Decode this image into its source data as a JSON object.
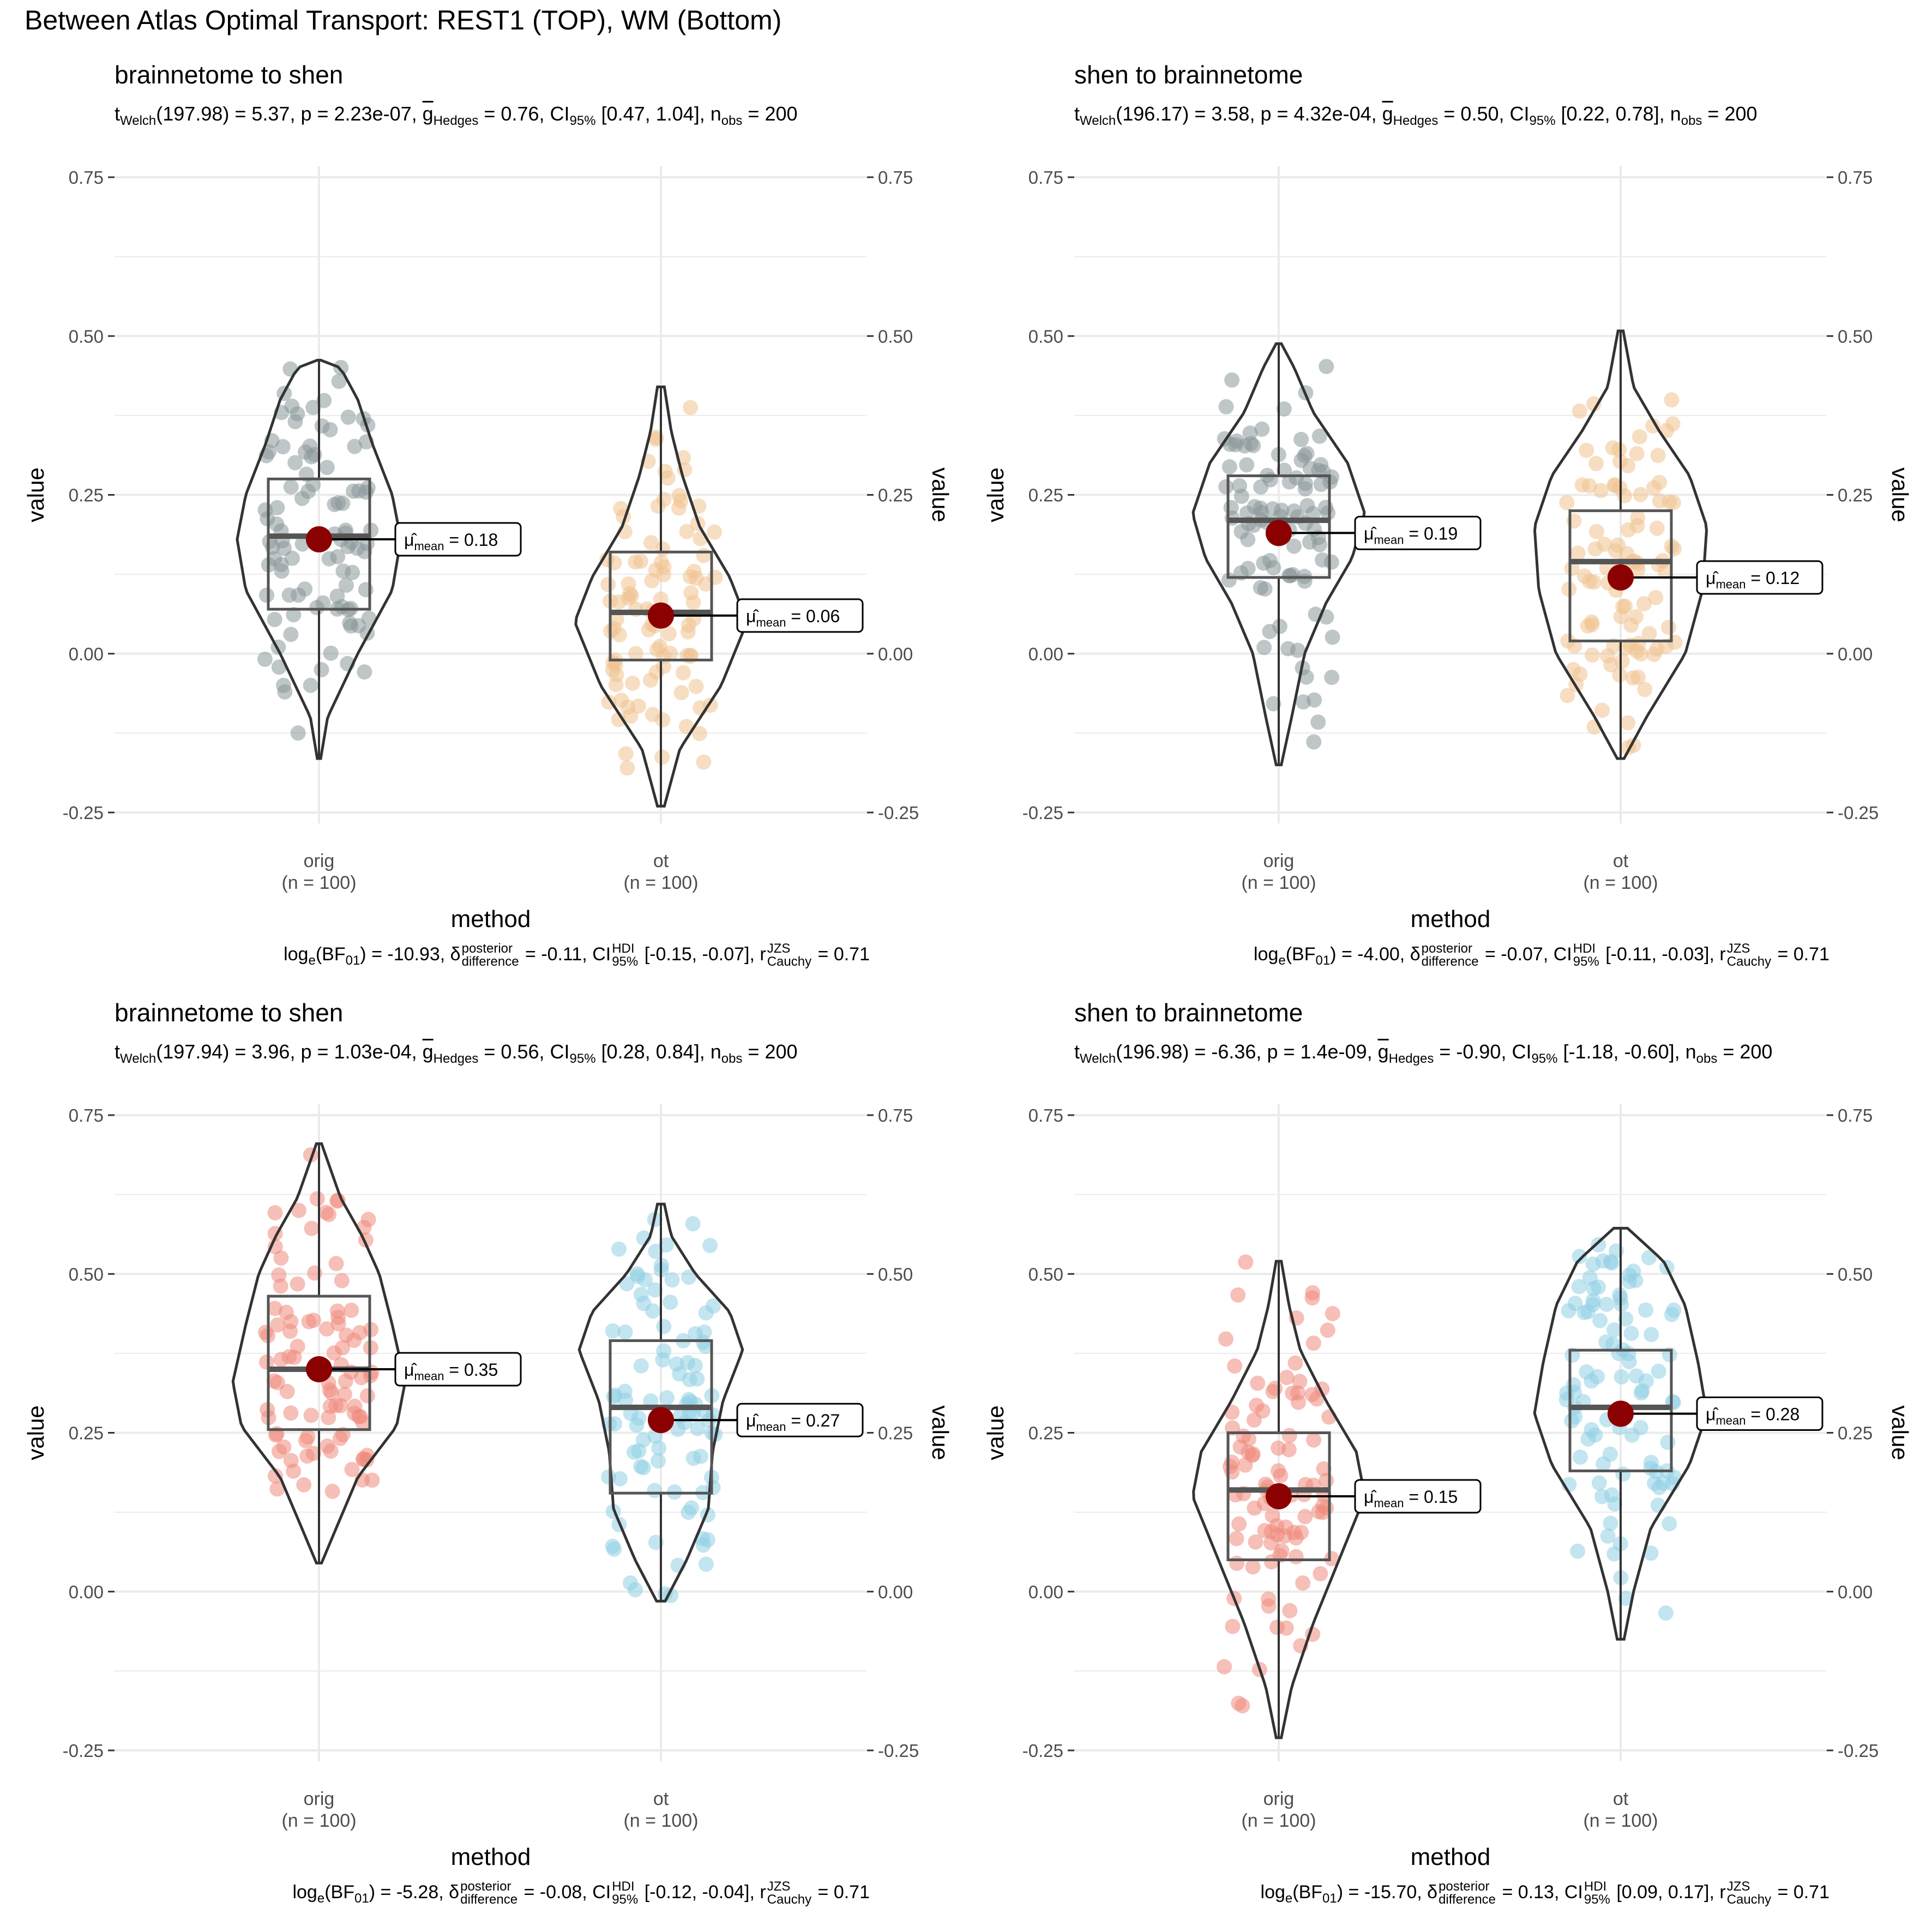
{
  "title": "Between Atlas Optimal Transport:  REST1  (TOP),  WM  (Bottom)",
  "colors": {
    "orig_top": "#8a9899",
    "ot_top": "#f0c28f",
    "orig_bottom": "#ef8a7b",
    "ot_bottom": "#8fd0e3",
    "mean_dot": "#8b0000",
    "outline": "#333333",
    "grid": "#ebebeb"
  },
  "chart_data": [
    {
      "type": "violin",
      "title": "brainnetome to shen",
      "subtitle": {
        "stat": "t",
        "stat_sub": "Welch",
        "df_value": "(197.98) = 5.37, p = 2.23e-07, ",
        "g_letter": "g",
        "g_sub": "Hedges",
        "g_value": " = 0.76, CI",
        "ci_sub": "95%",
        "ci_value": " [0.47, 1.04], n",
        "n_sub": "obs",
        "n_value": " = 200"
      },
      "caption": {
        "log_text": "log",
        "log_sub": "e",
        "bf_text": "(BF",
        "bf_sub": "01",
        "bf_value": ") = -10.93, ",
        "delta_sup": "posterior",
        "delta_sub": "difference",
        "delta_value": " = -0.11, CI",
        "hdi_sup": "HDI",
        "hdi_sub": "95%",
        "hdi_value": " [-0.15, -0.07], r",
        "r_sup": "JZS",
        "r_sub": "Cauchy",
        "r_value": " = 0.71"
      },
      "xlabel": "method",
      "ylabel": "value",
      "ylim": [
        -0.25,
        0.75
      ],
      "yticks": [
        "-0.25",
        "0.00",
        "0.25",
        "0.50",
        "0.75"
      ],
      "categories": [
        "orig",
        "ot"
      ],
      "category_n": [
        "(n = 100)",
        "(n = 100)"
      ],
      "palette": [
        "orig_top",
        "ot_top"
      ],
      "groups": [
        {
          "name": "orig",
          "min": -0.165,
          "q1": 0.07,
          "median": 0.185,
          "q3": 0.275,
          "max": 0.462,
          "mean": 0.18,
          "mean_label": "= 0.18",
          "mean_label_sub": "mean",
          "density": [
            [
              -0.165,
              0.02
            ],
            [
              -0.1,
              0.1
            ],
            [
              0.0,
              0.45
            ],
            [
              0.1,
              0.85
            ],
            [
              0.18,
              0.95
            ],
            [
              0.25,
              0.85
            ],
            [
              0.33,
              0.62
            ],
            [
              0.4,
              0.45
            ],
            [
              0.45,
              0.25
            ],
            [
              0.462,
              0.02
            ]
          ]
        },
        {
          "name": "ot",
          "min": -0.24,
          "q1": -0.01,
          "median": 0.065,
          "q3": 0.16,
          "max": 0.42,
          "mean": 0.06,
          "mean_label": "= 0.06",
          "mean_label_sub": "mean",
          "density": [
            [
              -0.24,
              0.04
            ],
            [
              -0.15,
              0.22
            ],
            [
              -0.05,
              0.7
            ],
            [
              0.05,
              1.0
            ],
            [
              0.12,
              0.8
            ],
            [
              0.2,
              0.45
            ],
            [
              0.28,
              0.25
            ],
            [
              0.35,
              0.12
            ],
            [
              0.42,
              0.04
            ]
          ]
        }
      ]
    },
    {
      "type": "violin",
      "title": "shen to brainnetome",
      "subtitle": {
        "stat": "t",
        "stat_sub": "Welch",
        "df_value": "(196.17) = 3.58, p = 4.32e-04, ",
        "g_letter": "g",
        "g_sub": "Hedges",
        "g_value": " = 0.50, CI",
        "ci_sub": "95%",
        "ci_value": " [0.22, 0.78], n",
        "n_sub": "obs",
        "n_value": " = 200"
      },
      "caption": {
        "log_text": "log",
        "log_sub": "e",
        "bf_text": "(BF",
        "bf_sub": "01",
        "bf_value": ") = -4.00, ",
        "delta_sup": "posterior",
        "delta_sub": "difference",
        "delta_value": " = -0.07, CI",
        "hdi_sup": "HDI",
        "hdi_sub": "95%",
        "hdi_value": " [-0.11, -0.03], r",
        "r_sup": "JZS",
        "r_sub": "Cauchy",
        "r_value": " = 0.71"
      },
      "xlabel": "method",
      "ylabel": "value",
      "ylim": [
        -0.25,
        0.75
      ],
      "yticks": [
        "-0.25",
        "0.00",
        "0.25",
        "0.50",
        "0.75"
      ],
      "categories": [
        "orig",
        "ot"
      ],
      "category_n": [
        "(n = 100)",
        "(n = 100)"
      ],
      "palette": [
        "orig_top",
        "ot_top"
      ],
      "groups": [
        {
          "name": "orig",
          "min": -0.175,
          "q1": 0.12,
          "median": 0.21,
          "q3": 0.28,
          "max": 0.488,
          "mean": 0.19,
          "mean_label": "= 0.19",
          "mean_label_sub": "mean",
          "density": [
            [
              -0.175,
              0.03
            ],
            [
              -0.1,
              0.15
            ],
            [
              0.0,
              0.3
            ],
            [
              0.08,
              0.55
            ],
            [
              0.15,
              0.85
            ],
            [
              0.22,
              1.0
            ],
            [
              0.3,
              0.8
            ],
            [
              0.38,
              0.4
            ],
            [
              0.45,
              0.18
            ],
            [
              0.488,
              0.03
            ]
          ]
        },
        {
          "name": "ot",
          "min": -0.165,
          "q1": 0.02,
          "median": 0.145,
          "q3": 0.225,
          "max": 0.508,
          "mean": 0.12,
          "mean_label": "= 0.12",
          "mean_label_sub": "mean",
          "density": [
            [
              -0.165,
              0.04
            ],
            [
              -0.1,
              0.3
            ],
            [
              0.0,
              0.75
            ],
            [
              0.1,
              0.95
            ],
            [
              0.2,
              1.0
            ],
            [
              0.28,
              0.8
            ],
            [
              0.35,
              0.45
            ],
            [
              0.42,
              0.15
            ],
            [
              0.508,
              0.03
            ]
          ]
        }
      ]
    },
    {
      "type": "violin",
      "title": "brainnetome to shen",
      "subtitle": {
        "stat": "t",
        "stat_sub": "Welch",
        "df_value": "(197.94) = 3.96, p = 1.03e-04, ",
        "g_letter": "g",
        "g_sub": "Hedges",
        "g_value": " = 0.56, CI",
        "ci_sub": "95%",
        "ci_value": " [0.28, 0.84], n",
        "n_sub": "obs",
        "n_value": " = 200"
      },
      "caption": {
        "log_text": "log",
        "log_sub": "e",
        "bf_text": "(BF",
        "bf_sub": "01",
        "bf_value": ") = -5.28, ",
        "delta_sup": "posterior",
        "delta_sub": "difference",
        "delta_value": " = -0.08, CI",
        "hdi_sup": "HDI",
        "hdi_sub": "95%",
        "hdi_value": " [-0.12, -0.04], r",
        "r_sup": "JZS",
        "r_sub": "Cauchy",
        "r_value": " = 0.71"
      },
      "xlabel": "method",
      "ylabel": "value",
      "ylim": [
        -0.25,
        0.75
      ],
      "yticks": [
        "-0.25",
        "0.00",
        "0.25",
        "0.50",
        "0.75"
      ],
      "categories": [
        "orig",
        "ot"
      ],
      "category_n": [
        "(n = 100)",
        "(n = 100)"
      ],
      "palette": [
        "orig_bottom",
        "ot_bottom"
      ],
      "groups": [
        {
          "name": "orig",
          "min": 0.045,
          "q1": 0.255,
          "median": 0.35,
          "q3": 0.465,
          "max": 0.705,
          "mean": 0.35,
          "mean_label": "= 0.35",
          "mean_label_sub": "mean",
          "density": [
            [
              0.045,
              0.03
            ],
            [
              0.1,
              0.2
            ],
            [
              0.18,
              0.45
            ],
            [
              0.26,
              0.9
            ],
            [
              0.33,
              1.0
            ],
            [
              0.42,
              0.85
            ],
            [
              0.5,
              0.7
            ],
            [
              0.56,
              0.5
            ],
            [
              0.62,
              0.25
            ],
            [
              0.705,
              0.03
            ]
          ]
        },
        {
          "name": "ot",
          "min": -0.015,
          "q1": 0.155,
          "median": 0.29,
          "q3": 0.395,
          "max": 0.61,
          "mean": 0.27,
          "mean_label": "= 0.27",
          "mean_label_sub": "mean",
          "density": [
            [
              -0.015,
              0.05
            ],
            [
              0.05,
              0.3
            ],
            [
              0.13,
              0.55
            ],
            [
              0.22,
              0.6
            ],
            [
              0.3,
              0.72
            ],
            [
              0.38,
              0.95
            ],
            [
              0.44,
              0.8
            ],
            [
              0.5,
              0.4
            ],
            [
              0.56,
              0.12
            ],
            [
              0.61,
              0.04
            ]
          ]
        }
      ]
    },
    {
      "type": "violin",
      "title": "shen to brainnetome",
      "subtitle": {
        "stat": "t",
        "stat_sub": "Welch",
        "df_value": "(196.98) = -6.36, p = 1.4e-09, ",
        "g_letter": "g",
        "g_sub": "Hedges",
        "g_value": " = -0.90, CI",
        "ci_sub": "95%",
        "ci_value": " [-1.18, -0.60], n",
        "n_sub": "obs",
        "n_value": " = 200"
      },
      "caption": {
        "log_text": "log",
        "log_sub": "e",
        "bf_text": "(BF",
        "bf_sub": "01",
        "bf_value": ") = -15.70, ",
        "delta_sup": "posterior",
        "delta_sub": "difference",
        "delta_value": " = 0.13, CI",
        "hdi_sup": "HDI",
        "hdi_sub": "95%",
        "hdi_value": " [0.09, 0.17], r",
        "r_sup": "JZS",
        "r_sub": "Cauchy",
        "r_value": " = 0.71"
      },
      "xlabel": "method",
      "ylabel": "value",
      "ylim": [
        -0.25,
        0.75
      ],
      "yticks": [
        "-0.25",
        "0.00",
        "0.25",
        "0.50",
        "0.75"
      ],
      "categories": [
        "orig",
        "ot"
      ],
      "category_n": [
        "(n = 100)",
        "(n = 100)"
      ],
      "palette": [
        "orig_bottom",
        "ot_bottom"
      ],
      "groups": [
        {
          "name": "orig",
          "min": -0.23,
          "q1": 0.05,
          "median": 0.16,
          "q3": 0.25,
          "max": 0.52,
          "mean": 0.15,
          "mean_label": "= 0.15",
          "mean_label_sub": "mean",
          "density": [
            [
              -0.23,
              0.03
            ],
            [
              -0.15,
              0.15
            ],
            [
              -0.05,
              0.4
            ],
            [
              0.05,
              0.7
            ],
            [
              0.15,
              1.0
            ],
            [
              0.22,
              0.9
            ],
            [
              0.3,
              0.55
            ],
            [
              0.38,
              0.25
            ],
            [
              0.45,
              0.12
            ],
            [
              0.52,
              0.03
            ]
          ]
        },
        {
          "name": "ot",
          "min": -0.075,
          "q1": 0.19,
          "median": 0.29,
          "q3": 0.38,
          "max": 0.572,
          "mean": 0.28,
          "mean_label": "= 0.28",
          "mean_label_sub": "mean",
          "density": [
            [
              -0.075,
              0.04
            ],
            [
              0.0,
              0.15
            ],
            [
              0.1,
              0.35
            ],
            [
              0.2,
              0.8
            ],
            [
              0.28,
              1.0
            ],
            [
              0.36,
              0.9
            ],
            [
              0.45,
              0.75
            ],
            [
              0.52,
              0.5
            ],
            [
              0.572,
              0.08
            ]
          ]
        }
      ]
    }
  ]
}
